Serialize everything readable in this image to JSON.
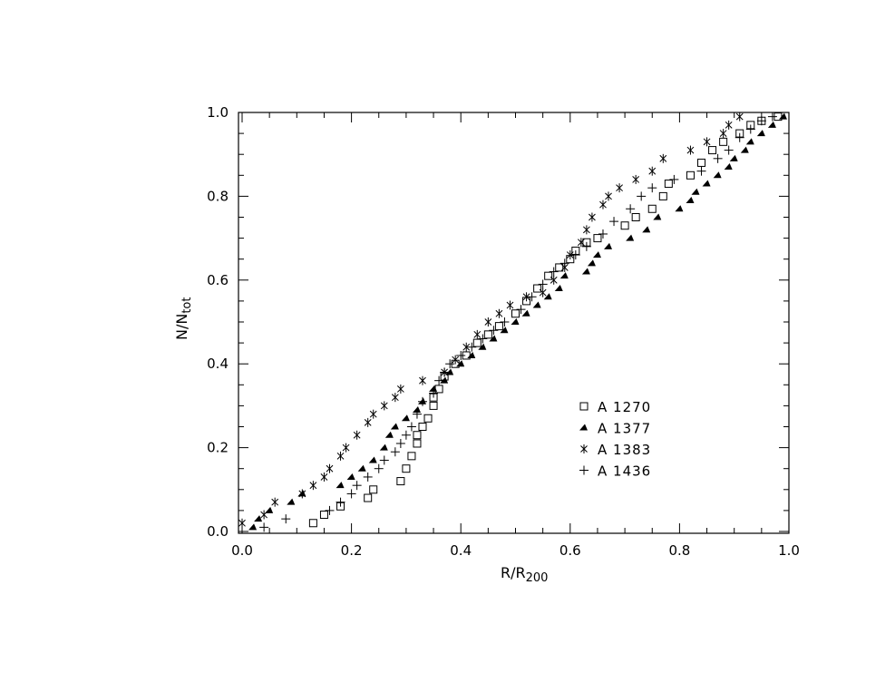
{
  "chart_data": {
    "type": "scatter",
    "xlabel": "R/R",
    "xlabel_sub": "200",
    "ylabel": "N/N",
    "ylabel_sub": "tot",
    "xlim": [
      0.0,
      1.0
    ],
    "ylim": [
      0.0,
      1.0
    ],
    "x_ticks": [
      "0.0",
      "0.2",
      "0.4",
      "0.6",
      "0.8",
      "1.0"
    ],
    "y_ticks": [
      "0.0",
      "0.2",
      "0.4",
      "0.6",
      "0.8",
      "1.0"
    ],
    "grid": false,
    "legend_position": "lower-right",
    "series": [
      {
        "name": "A 1270",
        "marker": "open-square",
        "points": [
          [
            0.13,
            0.02
          ],
          [
            0.15,
            0.04
          ],
          [
            0.18,
            0.06
          ],
          [
            0.23,
            0.08
          ],
          [
            0.24,
            0.1
          ],
          [
            0.29,
            0.12
          ],
          [
            0.3,
            0.15
          ],
          [
            0.31,
            0.18
          ],
          [
            0.32,
            0.21
          ],
          [
            0.32,
            0.23
          ],
          [
            0.33,
            0.25
          ],
          [
            0.34,
            0.27
          ],
          [
            0.35,
            0.3
          ],
          [
            0.35,
            0.32
          ],
          [
            0.36,
            0.34
          ],
          [
            0.37,
            0.37
          ],
          [
            0.39,
            0.4
          ],
          [
            0.41,
            0.42
          ],
          [
            0.43,
            0.45
          ],
          [
            0.45,
            0.47
          ],
          [
            0.47,
            0.49
          ],
          [
            0.5,
            0.52
          ],
          [
            0.52,
            0.55
          ],
          [
            0.54,
            0.58
          ],
          [
            0.56,
            0.61
          ],
          [
            0.58,
            0.63
          ],
          [
            0.6,
            0.65
          ],
          [
            0.61,
            0.67
          ],
          [
            0.63,
            0.69
          ],
          [
            0.65,
            0.7
          ],
          [
            0.7,
            0.73
          ],
          [
            0.72,
            0.75
          ],
          [
            0.75,
            0.77
          ],
          [
            0.77,
            0.8
          ],
          [
            0.78,
            0.83
          ],
          [
            0.82,
            0.85
          ],
          [
            0.84,
            0.88
          ],
          [
            0.86,
            0.91
          ],
          [
            0.88,
            0.93
          ],
          [
            0.91,
            0.95
          ],
          [
            0.93,
            0.97
          ],
          [
            0.95,
            0.98
          ],
          [
            0.98,
            0.99
          ]
        ]
      },
      {
        "name": "A 1377",
        "marker": "filled-triangle",
        "points": [
          [
            0.02,
            0.01
          ],
          [
            0.03,
            0.03
          ],
          [
            0.05,
            0.05
          ],
          [
            0.09,
            0.07
          ],
          [
            0.11,
            0.09
          ],
          [
            0.18,
            0.11
          ],
          [
            0.2,
            0.13
          ],
          [
            0.22,
            0.15
          ],
          [
            0.24,
            0.17
          ],
          [
            0.26,
            0.2
          ],
          [
            0.27,
            0.23
          ],
          [
            0.28,
            0.25
          ],
          [
            0.3,
            0.27
          ],
          [
            0.32,
            0.29
          ],
          [
            0.33,
            0.31
          ],
          [
            0.35,
            0.34
          ],
          [
            0.37,
            0.36
          ],
          [
            0.38,
            0.38
          ],
          [
            0.4,
            0.4
          ],
          [
            0.42,
            0.42
          ],
          [
            0.44,
            0.44
          ],
          [
            0.46,
            0.46
          ],
          [
            0.48,
            0.48
          ],
          [
            0.5,
            0.5
          ],
          [
            0.52,
            0.52
          ],
          [
            0.54,
            0.54
          ],
          [
            0.56,
            0.56
          ],
          [
            0.58,
            0.58
          ],
          [
            0.59,
            0.61
          ],
          [
            0.63,
            0.62
          ],
          [
            0.64,
            0.64
          ],
          [
            0.65,
            0.66
          ],
          [
            0.67,
            0.68
          ],
          [
            0.71,
            0.7
          ],
          [
            0.74,
            0.72
          ],
          [
            0.76,
            0.75
          ],
          [
            0.8,
            0.77
          ],
          [
            0.82,
            0.79
          ],
          [
            0.83,
            0.81
          ],
          [
            0.85,
            0.83
          ],
          [
            0.87,
            0.85
          ],
          [
            0.89,
            0.87
          ],
          [
            0.9,
            0.89
          ],
          [
            0.92,
            0.91
          ],
          [
            0.93,
            0.93
          ],
          [
            0.95,
            0.95
          ],
          [
            0.97,
            0.97
          ],
          [
            0.99,
            0.99
          ]
        ]
      },
      {
        "name": "A 1383",
        "marker": "asterisk",
        "points": [
          [
            0.0,
            0.02
          ],
          [
            0.04,
            0.04
          ],
          [
            0.06,
            0.07
          ],
          [
            0.11,
            0.09
          ],
          [
            0.13,
            0.11
          ],
          [
            0.15,
            0.13
          ],
          [
            0.16,
            0.15
          ],
          [
            0.18,
            0.18
          ],
          [
            0.19,
            0.2
          ],
          [
            0.21,
            0.23
          ],
          [
            0.23,
            0.26
          ],
          [
            0.24,
            0.28
          ],
          [
            0.26,
            0.3
          ],
          [
            0.28,
            0.32
          ],
          [
            0.29,
            0.34
          ],
          [
            0.33,
            0.36
          ],
          [
            0.37,
            0.38
          ],
          [
            0.39,
            0.41
          ],
          [
            0.41,
            0.44
          ],
          [
            0.43,
            0.47
          ],
          [
            0.45,
            0.5
          ],
          [
            0.47,
            0.52
          ],
          [
            0.49,
            0.54
          ],
          [
            0.52,
            0.56
          ],
          [
            0.55,
            0.57
          ],
          [
            0.57,
            0.6
          ],
          [
            0.59,
            0.63
          ],
          [
            0.6,
            0.66
          ],
          [
            0.62,
            0.69
          ],
          [
            0.63,
            0.72
          ],
          [
            0.64,
            0.75
          ],
          [
            0.66,
            0.78
          ],
          [
            0.67,
            0.8
          ],
          [
            0.69,
            0.82
          ],
          [
            0.72,
            0.84
          ],
          [
            0.75,
            0.86
          ],
          [
            0.77,
            0.89
          ],
          [
            0.82,
            0.91
          ],
          [
            0.85,
            0.93
          ],
          [
            0.88,
            0.95
          ],
          [
            0.89,
            0.97
          ],
          [
            0.91,
            0.99
          ]
        ]
      },
      {
        "name": "A 1436",
        "marker": "plus",
        "points": [
          [
            0.04,
            0.01
          ],
          [
            0.08,
            0.03
          ],
          [
            0.16,
            0.05
          ],
          [
            0.18,
            0.07
          ],
          [
            0.2,
            0.09
          ],
          [
            0.21,
            0.11
          ],
          [
            0.23,
            0.13
          ],
          [
            0.25,
            0.15
          ],
          [
            0.26,
            0.17
          ],
          [
            0.28,
            0.19
          ],
          [
            0.29,
            0.21
          ],
          [
            0.3,
            0.23
          ],
          [
            0.31,
            0.25
          ],
          [
            0.32,
            0.28
          ],
          [
            0.33,
            0.31
          ],
          [
            0.35,
            0.33
          ],
          [
            0.36,
            0.36
          ],
          [
            0.37,
            0.38
          ],
          [
            0.38,
            0.4
          ],
          [
            0.4,
            0.42
          ],
          [
            0.42,
            0.44
          ],
          [
            0.44,
            0.46
          ],
          [
            0.46,
            0.48
          ],
          [
            0.48,
            0.5
          ],
          [
            0.51,
            0.53
          ],
          [
            0.53,
            0.56
          ],
          [
            0.55,
            0.59
          ],
          [
            0.57,
            0.62
          ],
          [
            0.59,
            0.64
          ],
          [
            0.61,
            0.66
          ],
          [
            0.63,
            0.68
          ],
          [
            0.66,
            0.71
          ],
          [
            0.68,
            0.74
          ],
          [
            0.71,
            0.77
          ],
          [
            0.73,
            0.8
          ],
          [
            0.75,
            0.82
          ],
          [
            0.79,
            0.84
          ],
          [
            0.84,
            0.86
          ],
          [
            0.87,
            0.89
          ],
          [
            0.89,
            0.91
          ],
          [
            0.91,
            0.94
          ],
          [
            0.93,
            0.96
          ],
          [
            0.95,
            0.98
          ],
          [
            0.97,
            0.99
          ]
        ]
      }
    ]
  }
}
